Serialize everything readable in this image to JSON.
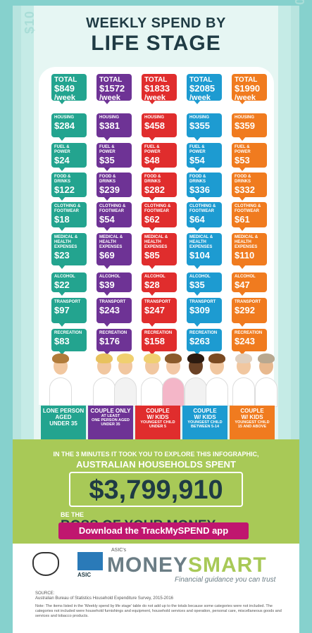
{
  "header": {
    "title_line1": "WEEKLY SPEND BY",
    "title_line2": "LIFE STAGE",
    "money_tag": "$10"
  },
  "colors": {
    "lone": "#23a48f",
    "couple_only": "#6e3395",
    "couple_kids_u5": "#e02d2d",
    "couple_kids_5_14": "#1d9bd1",
    "couple_kids_15_up": "#f07b1f",
    "green_band": "#a8c957",
    "download": "#c0166f"
  },
  "total_label": "TOTAL",
  "per_week": "/week",
  "columns": [
    {
      "label": "LONE PERSON AGED UNDER 35",
      "label_line1": "LONE PERSON",
      "label_line2": "AGED",
      "label_line3": "UNDER 35",
      "sub1": "",
      "sub2": "",
      "total": "$849",
      "housing": "$284",
      "fuel": "$24",
      "food": "$122",
      "clothing": "$18",
      "medical": "$23",
      "alcohol": "$22",
      "transport": "$97",
      "recreation": "$83"
    },
    {
      "label": "COUPLE ONLY",
      "label_line1": "COUPLE ONLY",
      "label_line2": "",
      "label_line3": "",
      "sub1": "AT LEAST",
      "sub2": "ONE PERSON AGED UNDER 35",
      "total": "$1572",
      "housing": "$381",
      "fuel": "$35",
      "food": "$239",
      "clothing": "$54",
      "medical": "$69",
      "alcohol": "$39",
      "transport": "$243",
      "recreation": "$176"
    },
    {
      "label": "COUPLE W/ KIDS",
      "label_line1": "COUPLE",
      "label_line2": "W/ KIDS",
      "label_line3": "",
      "sub1": "YOUNGEST CHILD",
      "sub2": "UNDER 5",
      "total": "$1833",
      "housing": "$458",
      "fuel": "$48",
      "food": "$282",
      "clothing": "$62",
      "medical": "$85",
      "alcohol": "$28",
      "transport": "$247",
      "recreation": "$158"
    },
    {
      "label": "COUPLE W/ KIDS",
      "label_line1": "COUPLE",
      "label_line2": "W/ KIDS",
      "label_line3": "",
      "sub1": "YOUNGEST CHILD",
      "sub2": "BETWEEN 5-14",
      "total": "$2085",
      "housing": "$355",
      "fuel": "$54",
      "food": "$336",
      "clothing": "$64",
      "medical": "$104",
      "alcohol": "$35",
      "transport": "$309",
      "recreation": "$263"
    },
    {
      "label": "COUPLE W/ KIDS",
      "label_line1": "COUPLE",
      "label_line2": "W/ KIDS",
      "label_line3": "",
      "sub1": "YOUNGEST CHILD",
      "sub2": "15 AND ABOVE",
      "total": "$1990",
      "housing": "$359",
      "fuel": "$53",
      "food": "$332",
      "clothing": "$61",
      "medical": "$110",
      "alcohol": "$47",
      "transport": "$292",
      "recreation": "$243"
    }
  ],
  "categories": {
    "housing": "HOUSING",
    "fuel": "FUEL & POWER",
    "food": "FOOD & DRINKS",
    "clothing": "CLOTHING & FOOTWEAR",
    "medical": "MEDICAL & HEALTH EXPENSES",
    "alcohol": "ALCOHOL",
    "transport": "TRANSPORT",
    "recreation": "RECREATION"
  },
  "promo": {
    "line1": "IN THE 3 MINUTES IT TOOK YOU TO EXPLORE THIS INFOGRAPHIC,",
    "line2": "AUSTRALIAN HOUSEHOLDS SPENT",
    "amount": "$3,799,910",
    "be_the": "BE THE",
    "boss": "BOSS OF YOUR MONEY",
    "download": "Download the TrackMySPEND app"
  },
  "footer": {
    "asic": "ASIC",
    "asics": "ASIC's",
    "money": "MONEY",
    "smart": "SMART",
    "tagline": "Financial guidance you can trust",
    "source_heading": "SOURCE:",
    "source": "Australian Bureau of Statistics Household Expenditure Survey, 2015-2016",
    "note": "Note: The items listed in the 'Weekly spend by life stage' table do not add up to the totals because some categories were not included. The categories not included were household furnishings and equipment, household services and operation, personal care, miscellaneous goods and services and tobacco products."
  }
}
